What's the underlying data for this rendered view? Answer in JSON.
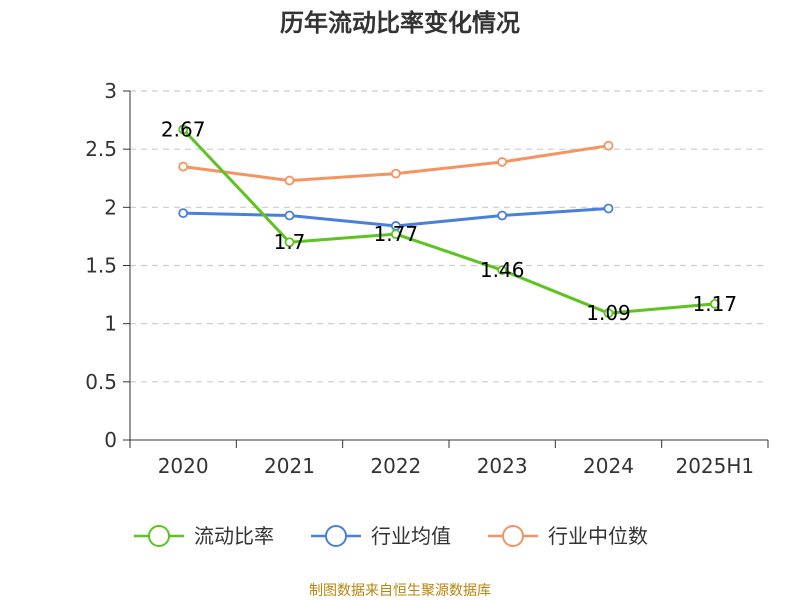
{
  "chart_data": {
    "type": "line",
    "title": "历年流动比率变化情况",
    "categories": [
      "2020",
      "2021",
      "2022",
      "2023",
      "2024",
      "2025H1"
    ],
    "ylim": [
      0,
      3
    ],
    "yticks": [
      "0",
      "0.5",
      "1",
      "1.5",
      "2",
      "2.5",
      "3"
    ],
    "grid": true,
    "legend_position": "bottom",
    "series": [
      {
        "name": "流动比率",
        "color": "#5cc31f",
        "values": [
          2.67,
          1.7,
          1.77,
          1.46,
          1.09,
          1.17
        ],
        "labels": [
          "2.67",
          "1.7",
          "1.77",
          "1.46",
          "1.09",
          "1.17"
        ]
      },
      {
        "name": "行业均值",
        "color": "#4a7fdc",
        "values": [
          1.95,
          1.93,
          1.84,
          1.93,
          1.99,
          null
        ]
      },
      {
        "name": "行业中位数",
        "color": "#f59461",
        "values": [
          2.35,
          2.23,
          2.29,
          2.39,
          2.53,
          null
        ]
      }
    ]
  },
  "footer": {
    "source": "制图数据来自恒生聚源数据库"
  }
}
